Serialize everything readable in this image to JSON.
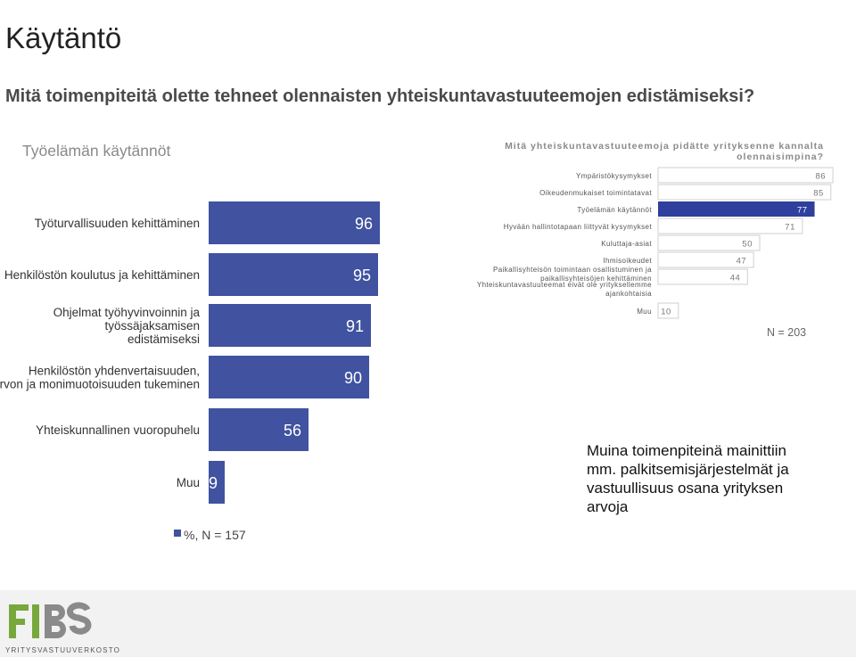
{
  "page_title": "Käytäntö",
  "question": "Mitä toimenpiteitä olette tehneet olennaisten yhteiskuntavastuuteemojen edistämiseksi?",
  "left_title": "Työelämän käytännöt",
  "right_title": "Mitä yhteiskuntavastuuteemoja pidätte yrityksenne kannalta olennaisimpina?",
  "right_n": "N = 203",
  "note": "Muina toimenpiteinä mainittiin mm. palkitsemisjärjestelmät ja vastuullisuus osana yrityksen arvoja",
  "logo": {
    "text": "FIBS",
    "subtitle": "YRITYSVASTUUVERKOSTO"
  },
  "colors": {
    "bar": "#4052a0",
    "highlight": "#2f3f9e",
    "gray_bar": "#7f7f7f",
    "logo_green": "#78a83c",
    "logo_gray": "#8a8a8a"
  },
  "chart_data": [
    {
      "type": "bar",
      "orientation": "horizontal",
      "categories": [
        "Työturvallisuuden kehittäminen",
        "Henkilöstön koulutus ja kehittäminen",
        "Ohjelmat työhyvinvoinnin ja työssäjaksamisen edistämiseksi",
        "Henkilöstön yhdenvertaisuuden, tasa-arvon ja monimuotoisuuden tukeminen",
        "Yhteiskunnallinen vuoropuhelu",
        "Muu"
      ],
      "values": [
        96,
        95,
        91,
        90,
        56,
        9
      ],
      "legend": "%, N = 157",
      "xlim": [
        0,
        100
      ]
    },
    {
      "type": "bar",
      "orientation": "horizontal",
      "title": "Mitä yhteiskuntavastuuteemoja pidätte yrityksenne kannalta olennaisimpina?",
      "categories": [
        "Ympäristökysymykset",
        "Oikeudenmukaiset toimintatavat",
        "Työelämän käytännöt",
        "Hyvään hallintotapaan liittyvät kysymykset",
        "Kuluttaja-asiat",
        "Ihmisoikeudet",
        "Paikallisyhteisön toimintaan osallistuminen ja paikallisyhteisöjen kehittäminen",
        "Yhteiskuntavastuuteemat eivät ole yrityksellemme ajankohtaisia",
        "Muu"
      ],
      "values": [
        86,
        85,
        77,
        71,
        50,
        47,
        44,
        null,
        10
      ],
      "highlight": "Työelämän käytännöt",
      "annotation": "N = 203",
      "xlim": [
        0,
        100
      ]
    }
  ]
}
